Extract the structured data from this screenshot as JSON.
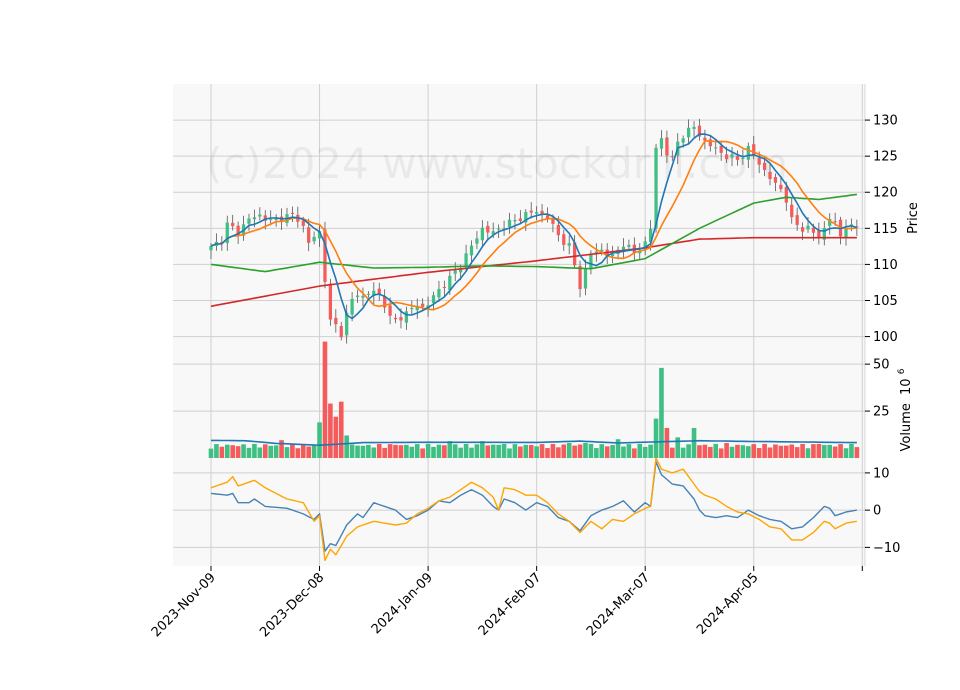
{
  "chart_data": {
    "type": "candlestick",
    "watermark": "(c)2024 www.stockdrill.com",
    "colors": {
      "up": "#3fbf84",
      "down": "#f45b5b",
      "panel_bg": "#f8f8f8",
      "grid": "#d0d0d0",
      "ma_short": "#1f77b4",
      "ma_mid": "#ff7f0e",
      "ma_long": "#2ca02c",
      "ma_xlong": "#d62728",
      "vol_ma": "#1f77b4",
      "osc_fast": "#4682b4",
      "osc_slow": "#ffa500"
    },
    "x_axis": {
      "ticks": [
        {
          "label": "2023-Nov-09",
          "index": 0
        },
        {
          "label": "2023-Dec-08",
          "index": 20
        },
        {
          "label": "2024-Jan-09",
          "index": 40
        },
        {
          "label": "2024-Feb-07",
          "index": 60
        },
        {
          "label": "2024-Mar-07",
          "index": 80
        },
        {
          "label": "2024-Apr-05",
          "index": 100
        }
      ],
      "n_points": 120,
      "xlim": [
        -7,
        120.5
      ]
    },
    "price_panel": {
      "ylabel": "Price",
      "ylim": [
        98,
        135
      ],
      "yticks": [
        100,
        105,
        110,
        115,
        120,
        125,
        130
      ],
      "ohlc": [],
      "ma_short": [],
      "ma_mid": [],
      "ma_long": [],
      "ma_xlong": []
    },
    "volume_panel": {
      "ylabel": "Volume",
      "ylabel_exp": "6",
      "ylim": [
        0,
        57
      ],
      "yticks": [
        25,
        50
      ],
      "volume": [],
      "vol_ma": []
    },
    "oscillator_panel": {
      "ylim": [
        -15,
        14
      ],
      "yticks": [
        -10,
        0,
        10
      ],
      "fast": [],
      "slow": []
    }
  }
}
